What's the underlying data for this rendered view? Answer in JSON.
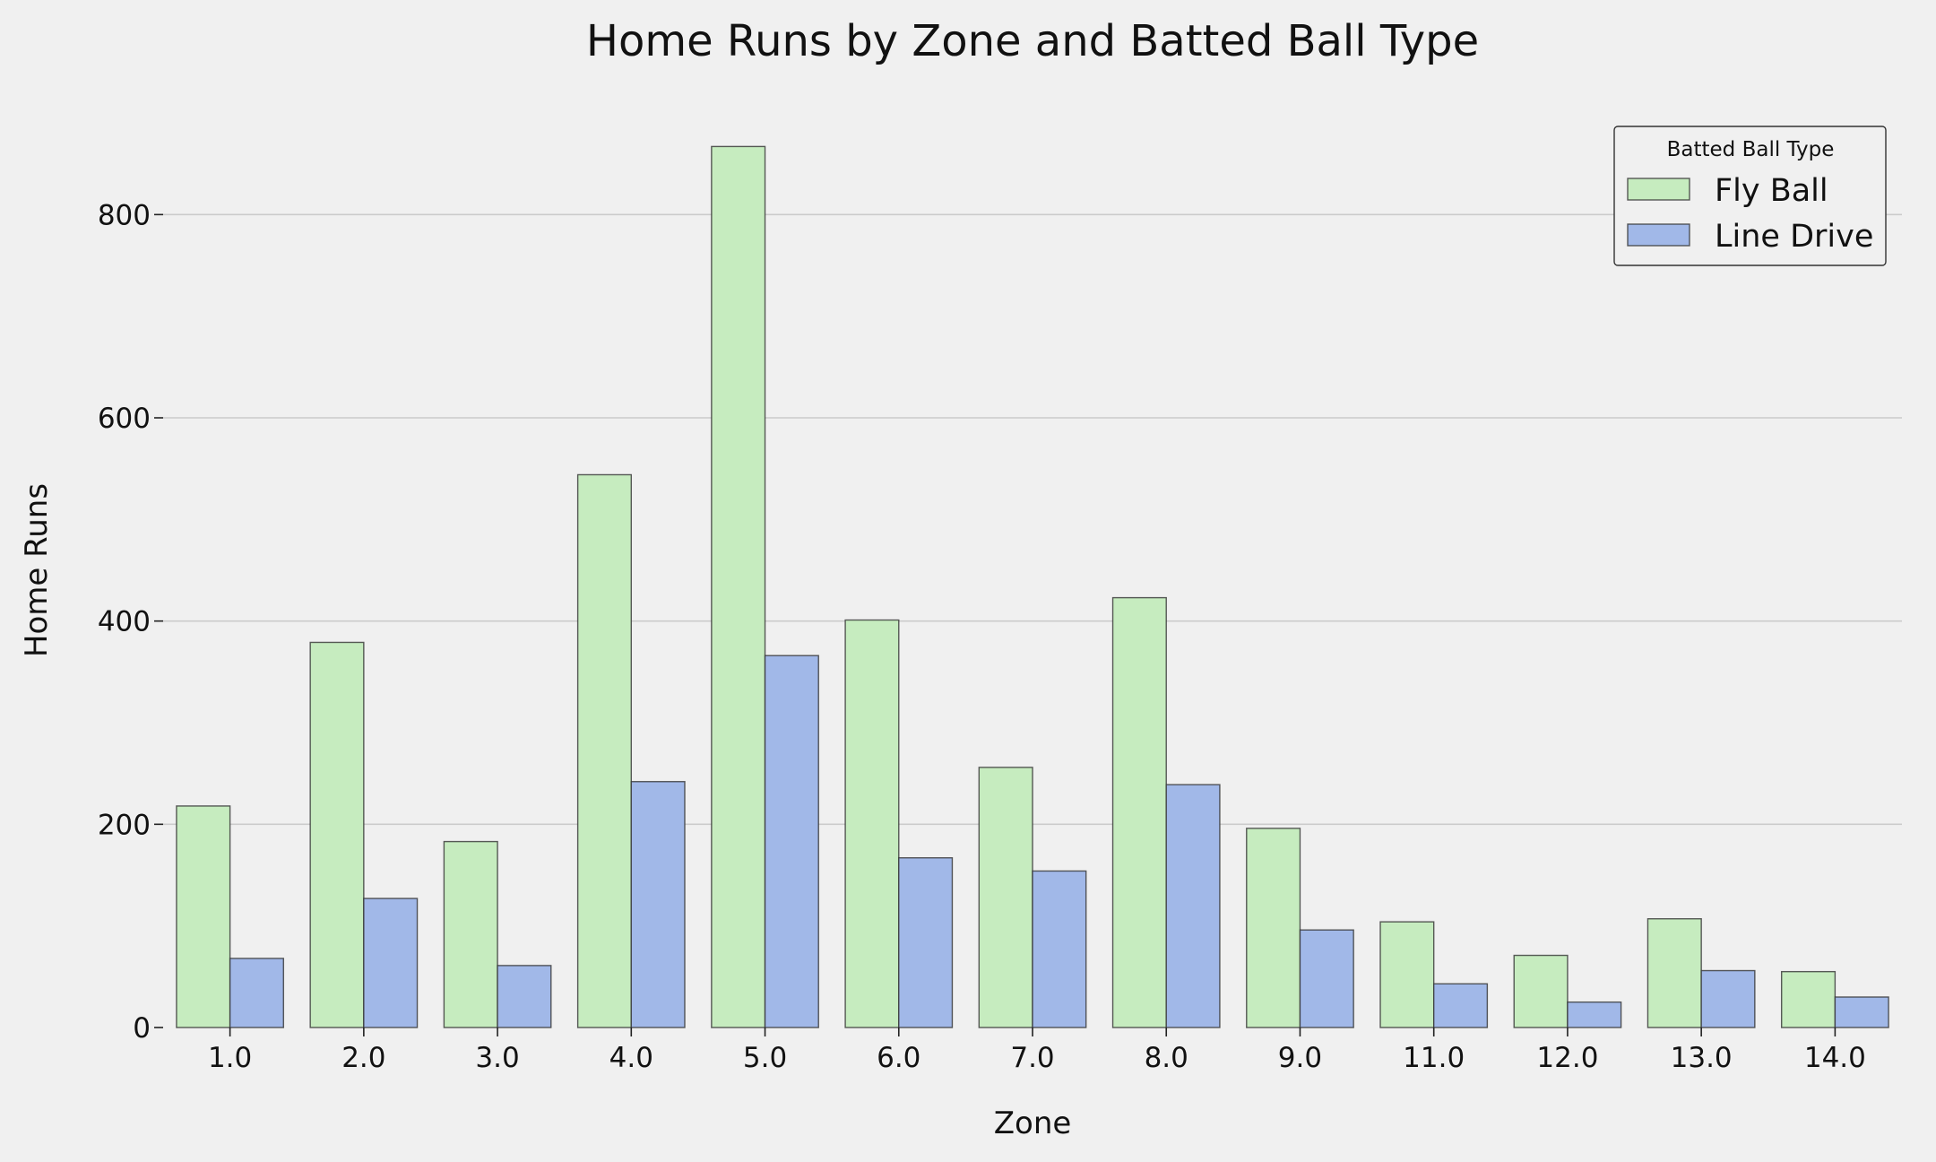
{
  "chart_data": {
    "type": "bar",
    "title": "Home Runs by Zone and Batted Ball Type",
    "xlabel": "Zone",
    "ylabel": "Home Runs",
    "categories": [
      "1.0",
      "2.0",
      "3.0",
      "4.0",
      "5.0",
      "6.0",
      "7.0",
      "8.0",
      "9.0",
      "11.0",
      "12.0",
      "13.0",
      "14.0"
    ],
    "series": [
      {
        "name": "Fly Ball",
        "color": "#c6ecbf",
        "values": [
          218,
          379,
          183,
          544,
          867,
          401,
          256,
          423,
          196,
          104,
          71,
          107,
          55
        ]
      },
      {
        "name": "Line Drive",
        "color": "#a1b8e8",
        "values": [
          68,
          127,
          61,
          242,
          366,
          167,
          154,
          239,
          96,
          43,
          25,
          56,
          30
        ]
      }
    ],
    "ylim": [
      0,
      900
    ],
    "yticks": [
      0,
      200,
      400,
      600,
      800
    ],
    "grid": "y",
    "legend": {
      "title": "Batted Ball Type",
      "position": "top-right"
    }
  }
}
